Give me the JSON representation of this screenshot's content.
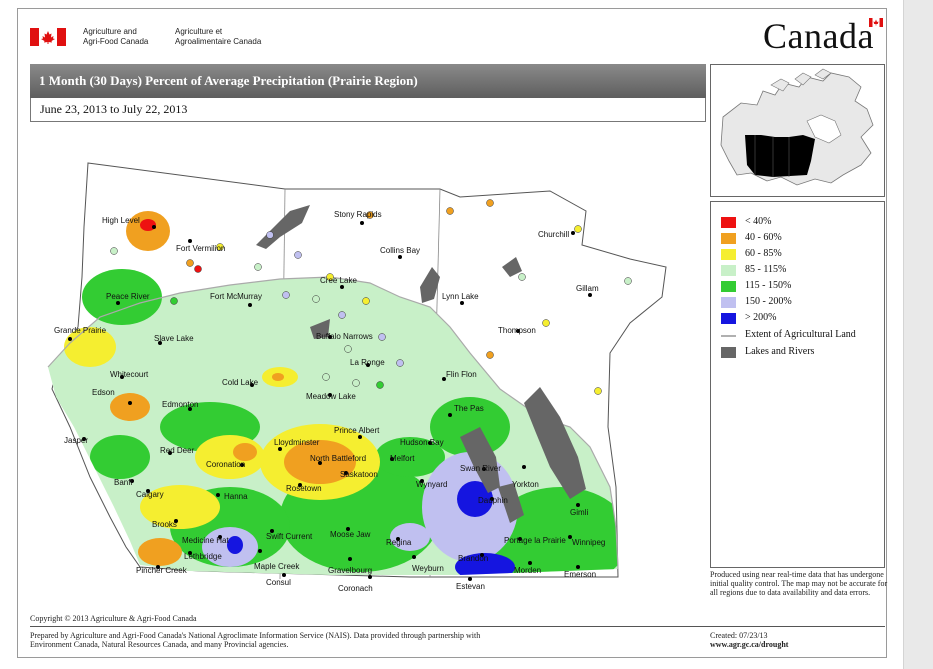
{
  "header": {
    "dept_en_line1": "Agriculture and",
    "dept_en_line2": "Agri-Food Canada",
    "dept_fr_line1": "Agriculture et",
    "dept_fr_line2": "Agroalimentaire Canada",
    "wordmark": "Canada"
  },
  "title": "1 Month (30 Days) Percent of Average Precipitation  (Prairie Region)",
  "date_range": "June 23, 2013 to July 22, 2013",
  "legend": {
    "items": [
      {
        "label": "< 40%",
        "color": "#ee1111"
      },
      {
        "label": "40 - 60%",
        "color": "#f0a020"
      },
      {
        "label": "60 - 85%",
        "color": "#f5ee30"
      },
      {
        "label": "85 - 115%",
        "color": "#c8f0c8"
      },
      {
        "label": "115 - 150%",
        "color": "#33cc33"
      },
      {
        "label": "150 - 200%",
        "color": "#c0c0f0"
      },
      {
        "label": "> 200%",
        "color": "#1515e0"
      }
    ],
    "extent_label": "Extent of Agricultural Land",
    "lakes_label": "Lakes and Rivers",
    "note": "Produced using near real-time data that has undergone initial quality control.  The map may not be accurate for all regions due to data availability and data errors."
  },
  "map": {
    "places": [
      "High Level",
      "Fort Vermilion",
      "Stony Rapids",
      "Collins Bay",
      "Churchill",
      "Cree Lake",
      "Fort McMurray",
      "Peace River",
      "Grande Prairie",
      "Lynn Lake",
      "Gillam",
      "Slave Lake",
      "Buffalo Narrows",
      "Thompson",
      "La Ronge",
      "Whitecourt",
      "Flin Flon",
      "Cold Lake",
      "Edson",
      "Meadow Lake",
      "Edmonton",
      "The Pas",
      "Jasper",
      "Prince Albert",
      "Hudson Bay",
      "Lloydminster",
      "Red Deer",
      "North Battleford",
      "Melfort",
      "Coronation",
      "Swan River",
      "Saskatoon",
      "Wynyard",
      "Banff",
      "Rosetown",
      "Dauphin",
      "Calgary",
      "Hanna",
      "Gimli",
      "Brooks",
      "Swift Current",
      "Moose Jaw",
      "Regina",
      "Portage la Prairie",
      "Winnipeg",
      "Medicine Hat",
      "Lethbridge",
      "Maple Creek",
      "Gravelbourg",
      "Weyburn",
      "Brandon",
      "Morden",
      "Emerson",
      "Pincher Creek",
      "Consul",
      "Coronach",
      "Estevan",
      "Yorkton"
    ]
  },
  "footer": {
    "copyright": "Copyright © 2013 Agriculture & Agri-Food Canada",
    "prepared_line1": "Prepared by Agriculture and Agri-Food Canada's National Agroclimate Information Service (NAIS).   Data provided through partnership with",
    "prepared_line2": "Environment Canada, Natural Resources Canada, and many Provincial agencies.",
    "created": "Created: 07/23/13",
    "url": "www.agr.gc.ca/drought"
  }
}
